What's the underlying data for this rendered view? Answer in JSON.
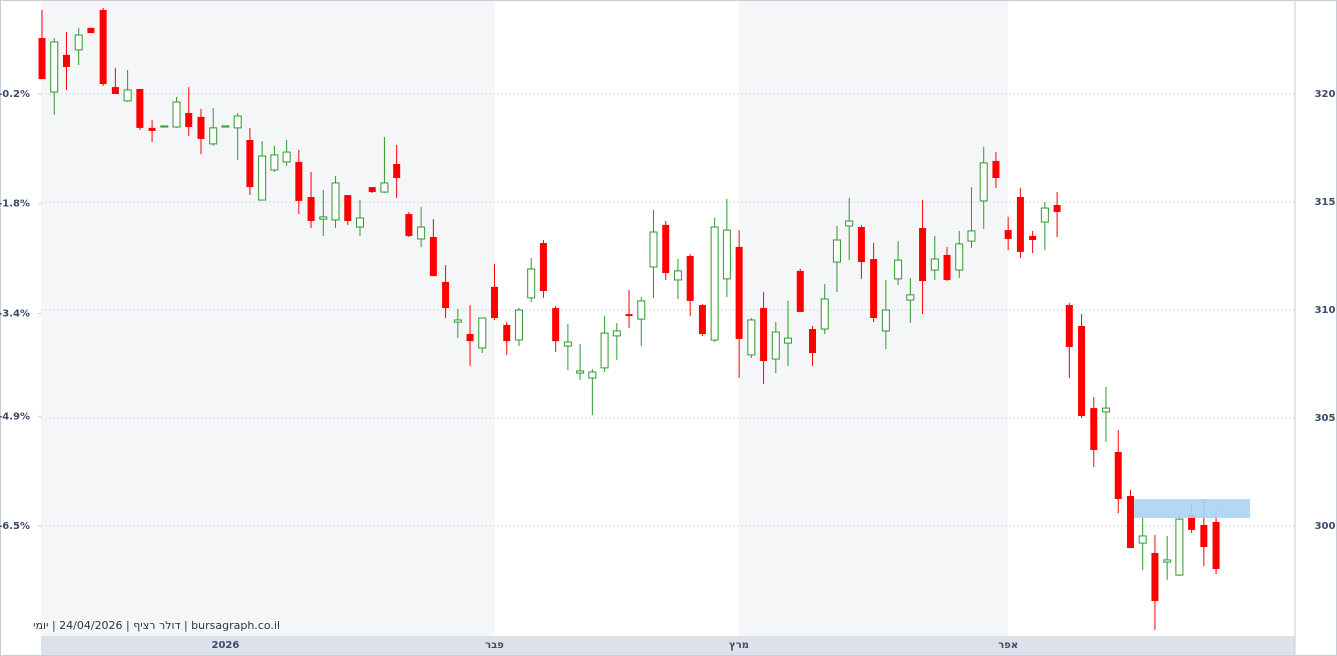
{
  "chart_data": {
    "type": "candlestick",
    "source": "bursagraph.co.il | דולר רציף | 24/04/2026 | יומי",
    "up_color": "#2e9a2e",
    "down_color": "#ff0000",
    "zone_color": "#aad4f5",
    "zone": [
      300.37,
      301.25
    ],
    "grid": true,
    "categories": [
      null,
      null,
      null,
      null,
      null,
      null,
      null,
      null,
      null,
      null,
      null,
      null,
      null,
      null,
      null,
      "2026",
      null,
      null,
      null,
      null,
      null,
      null,
      null,
      null,
      null,
      null,
      null,
      null,
      null,
      null,
      null,
      null,
      null,
      null,
      null,
      null,
      null,
      "פבר",
      null,
      null,
      null,
      null,
      null,
      null,
      null,
      null,
      null,
      null,
      null,
      null,
      null,
      null,
      null,
      null,
      null,
      null,
      null,
      "מרץ",
      null,
      null,
      null,
      null,
      null,
      null,
      null,
      null,
      null,
      null,
      null,
      null,
      null,
      null,
      null,
      null,
      null,
      null,
      null,
      null,
      null,
      "אפר",
      null,
      null,
      null,
      null,
      null,
      null,
      null,
      null,
      null,
      null,
      null,
      null,
      null,
      null,
      null,
      null,
      null
    ],
    "open": [
      322.59,
      320.09,
      321.81,
      322.04,
      323.06,
      323.89,
      320.32,
      319.68,
      320.23,
      318.43,
      318.47,
      318.47,
      319.12,
      318.94,
      317.69,
      318.47,
      318.43,
      317.87,
      315.09,
      316.48,
      316.85,
      316.85,
      315.23,
      314.21,
      314.17,
      315.32,
      313.84,
      315.69,
      315.46,
      316.76,
      314.44,
      313.29,
      313.38,
      311.3,
      309.44,
      308.89,
      308.24,
      311.07,
      309.31,
      308.61,
      310.56,
      313.1,
      310.09,
      308.33,
      307.08,
      306.85,
      307.32,
      308.8,
      309.81,
      309.58,
      311.99,
      313.94,
      311.39,
      312.5,
      310.23,
      308.61,
      311.44,
      312.92,
      307.92,
      310.09,
      307.73,
      308.47,
      311.81,
      309.12,
      309.12,
      312.22,
      313.89,
      313.84,
      312.36,
      309.03,
      311.44,
      310.46,
      313.8,
      311.85,
      312.55,
      311.85,
      313.19,
      315.05,
      316.9,
      313.7,
      315.23,
      313.43,
      314.07,
      314.86,
      310.23,
      309.26,
      305.46,
      305.28,
      303.43,
      301.39,
      299.21,
      298.75,
      298.33,
      297.73,
      300.51,
      300.05,
      300.19
    ],
    "high": [
      323.89,
      322.59,
      322.87,
      323.06,
      323.06,
      323.98,
      321.2,
      321.11,
      320.23,
      318.8,
      318.52,
      319.86,
      320.32,
      319.31,
      319.35,
      318.52,
      319.12,
      318.43,
      317.82,
      317.59,
      317.87,
      317.41,
      316.39,
      315.56,
      316.2,
      315.32,
      315.09,
      315.69,
      318.01,
      317.64,
      314.54,
      314.77,
      314.21,
      312.08,
      310.05,
      310.23,
      309.63,
      312.13,
      309.44,
      310.09,
      312.41,
      313.24,
      310.19,
      309.35,
      308.43,
      307.27,
      309.72,
      309.4,
      310.93,
      310.6,
      314.63,
      314.12,
      312.36,
      312.59,
      310.28,
      314.26,
      315.14,
      313.7,
      309.63,
      310.83,
      309.44,
      310.42,
      311.9,
      309.26,
      311.2,
      313.89,
      315.19,
      313.94,
      313.1,
      311.39,
      313.19,
      311.48,
      315.09,
      313.43,
      312.92,
      313.66,
      315.69,
      317.55,
      317.31,
      314.31,
      315.65,
      313.66,
      315.0,
      315.46,
      310.32,
      309.81,
      305.97,
      306.44,
      304.44,
      301.67,
      300.37,
      299.58,
      299.54,
      300.51,
      300.97,
      301.25,
      300.74
    ],
    "low": [
      320.69,
      319.03,
      320.19,
      321.34,
      322.82,
      320.37,
      320.0,
      319.63,
      318.33,
      317.78,
      318.47,
      318.43,
      318.06,
      317.22,
      317.59,
      318.47,
      316.94,
      315.32,
      315.09,
      316.39,
      316.67,
      314.44,
      313.8,
      313.43,
      313.8,
      313.94,
      313.43,
      315.42,
      315.42,
      315.19,
      313.38,
      312.92,
      311.57,
      309.63,
      308.7,
      307.41,
      308.01,
      309.54,
      307.92,
      308.33,
      310.37,
      310.56,
      308.06,
      307.22,
      306.76,
      305.14,
      307.13,
      307.69,
      309.17,
      308.33,
      310.56,
      311.39,
      310.51,
      309.72,
      308.8,
      308.52,
      310.6,
      306.85,
      307.78,
      306.57,
      307.08,
      307.41,
      309.91,
      307.41,
      308.89,
      310.83,
      312.31,
      311.44,
      309.44,
      308.19,
      311.16,
      309.4,
      309.81,
      311.39,
      311.34,
      311.48,
      312.87,
      313.75,
      315.65,
      312.78,
      312.41,
      312.64,
      312.78,
      313.38,
      306.85,
      305.0,
      302.73,
      303.89,
      300.6,
      298.98,
      297.96,
      295.19,
      297.5,
      297.69,
      299.68,
      298.15,
      297.78
    ],
    "close": [
      320.69,
      322.41,
      321.25,
      322.73,
      322.82,
      320.46,
      320.0,
      320.19,
      318.43,
      318.29,
      318.52,
      319.63,
      318.47,
      317.92,
      318.43,
      318.52,
      318.98,
      315.69,
      317.13,
      317.18,
      317.31,
      315.05,
      314.12,
      314.31,
      315.88,
      314.12,
      314.26,
      315.46,
      315.88,
      316.11,
      313.43,
      313.84,
      311.57,
      310.09,
      309.54,
      308.56,
      309.63,
      309.63,
      308.56,
      310.0,
      311.9,
      310.88,
      308.56,
      308.52,
      307.18,
      307.13,
      308.93,
      309.03,
      309.72,
      310.42,
      313.61,
      311.71,
      311.81,
      310.42,
      308.89,
      313.84,
      313.7,
      308.66,
      309.54,
      307.64,
      308.98,
      308.7,
      309.91,
      308.01,
      310.51,
      313.24,
      314.12,
      312.22,
      309.63,
      310.0,
      312.31,
      310.7,
      311.34,
      312.36,
      311.39,
      313.06,
      313.66,
      316.81,
      316.11,
      313.29,
      312.69,
      313.24,
      314.72,
      314.54,
      308.29,
      305.09,
      303.52,
      305.46,
      301.25,
      298.98,
      299.54,
      296.53,
      298.43,
      300.32,
      299.82,
      299.03,
      298.01
    ],
    "ylim": [
      294.91,
      324.35
    ],
    "yticks": [
      300,
      305,
      310,
      315,
      320
    ],
    "y2lim": [
      -8.104,
      1.171
    ],
    "y2ticks": [
      {
        "value": -6.5,
        "label": "-6.5%"
      },
      {
        "value": -4.9,
        "label": "-4.9%"
      },
      {
        "value": -3.4,
        "label": "-3.4%"
      },
      {
        "value": -1.8,
        "label": "-1.8%"
      },
      {
        "value": -0.2,
        "label": "-0.2%"
      }
    ]
  }
}
